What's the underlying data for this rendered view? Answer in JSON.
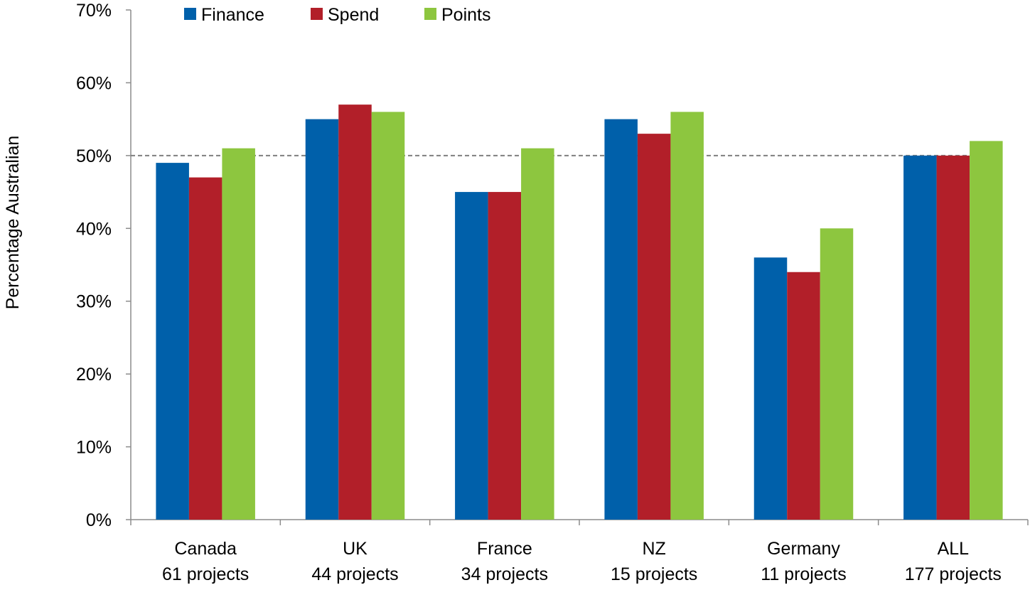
{
  "chart_data": {
    "type": "bar",
    "title": "",
    "xlabel": "",
    "ylabel": "Percentage Australian",
    "ylim": [
      0,
      70
    ],
    "yticks": [
      "0%",
      "10%",
      "20%",
      "30%",
      "40%",
      "50%",
      "60%",
      "70%"
    ],
    "ytick_values": [
      0,
      10,
      20,
      30,
      40,
      50,
      60,
      70
    ],
    "categories": [
      {
        "name": "Canada",
        "sub": "61 projects"
      },
      {
        "name": "UK",
        "sub": "44 projects"
      },
      {
        "name": "France",
        "sub": "34 projects"
      },
      {
        "name": "NZ",
        "sub": "15 projects"
      },
      {
        "name": "Germany",
        "sub": "11 projects"
      },
      {
        "name": "ALL",
        "sub": "177 projects"
      }
    ],
    "series": [
      {
        "name": "Finance",
        "color": "#0060AA",
        "values": [
          49,
          55,
          45,
          55,
          36,
          50
        ]
      },
      {
        "name": "Spend",
        "color": "#B21F29",
        "values": [
          47,
          57,
          45,
          53,
          34,
          50
        ]
      },
      {
        "name": "Points",
        "color": "#8DC63F",
        "values": [
          51,
          56,
          51,
          56,
          40,
          52
        ]
      }
    ],
    "reference_line": {
      "value": 50,
      "style": "dashed",
      "color": "#7F7F7F"
    },
    "grid": false,
    "legend_position": "top"
  }
}
